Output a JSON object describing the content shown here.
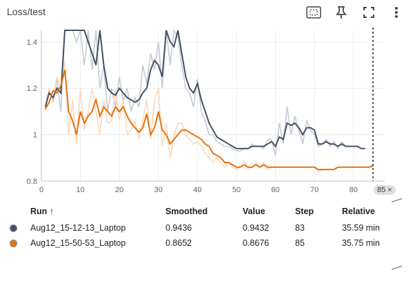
{
  "card": {
    "title": "Loss/test"
  },
  "toolbar": {
    "icons": [
      "fit-domain-icon",
      "pin-icon",
      "fullscreen-icon",
      "more-vert-icon"
    ]
  },
  "chart_data": {
    "type": "line",
    "xlim": [
      0,
      88
    ],
    "ylim": [
      0.8,
      1.45
    ],
    "x_ticks": [
      {
        "v": 0,
        "label": "0"
      },
      {
        "v": 10,
        "label": "10"
      },
      {
        "v": 20,
        "label": "20"
      },
      {
        "v": 30,
        "label": "30"
      },
      {
        "v": 40,
        "label": "40"
      },
      {
        "v": 50,
        "label": "50"
      },
      {
        "v": 60,
        "label": "60"
      },
      {
        "v": 70,
        "label": "70"
      },
      {
        "v": 80,
        "label": "80"
      }
    ],
    "y_ticks": [
      {
        "v": 0.8,
        "label": "0.8"
      },
      {
        "v": 1.0,
        "label": "1"
      },
      {
        "v": 1.2,
        "label": "1.2"
      },
      {
        "v": 1.4,
        "label": "1.4"
      }
    ],
    "grid": true,
    "cursor_step": 85,
    "series": [
      {
        "name": "Aug12_15-12-13_Laptop",
        "color": "#425066",
        "raw_color": "#c5cad3",
        "x": [
          1,
          2,
          3,
          4,
          5,
          6,
          7,
          8,
          9,
          10,
          11,
          12,
          13,
          14,
          15,
          16,
          17,
          18,
          19,
          20,
          21,
          22,
          23,
          24,
          25,
          26,
          27,
          28,
          29,
          30,
          31,
          32,
          33,
          34,
          35,
          36,
          37,
          38,
          39,
          40,
          41,
          42,
          43,
          44,
          45,
          46,
          47,
          48,
          49,
          50,
          51,
          52,
          53,
          54,
          55,
          56,
          57,
          58,
          59,
          60,
          61,
          62,
          63,
          64,
          65,
          66,
          67,
          68,
          69,
          70,
          71,
          72,
          73,
          74,
          75,
          76,
          77,
          78,
          79,
          80,
          81,
          82,
          83
        ],
        "smoothed": [
          1.12,
          1.18,
          1.16,
          1.2,
          1.18,
          1.5,
          1.65,
          1.7,
          1.55,
          1.45,
          1.5,
          1.4,
          1.35,
          1.3,
          1.45,
          1.3,
          1.2,
          1.18,
          1.17,
          1.2,
          1.18,
          1.16,
          1.15,
          1.14,
          1.15,
          1.18,
          1.2,
          1.28,
          1.32,
          1.3,
          1.25,
          1.45,
          1.4,
          1.38,
          1.5,
          1.35,
          1.25,
          1.2,
          1.18,
          1.22,
          1.15,
          1.1,
          1.05,
          1.02,
          0.99,
          0.98,
          0.97,
          0.96,
          0.95,
          0.94,
          0.94,
          0.94,
          0.94,
          0.95,
          0.95,
          0.95,
          0.95,
          0.96,
          0.97,
          0.95,
          0.99,
          0.98,
          1.05,
          1.04,
          1.05,
          1.03,
          1.0,
          1.03,
          1.03,
          1.02,
          0.96,
          0.96,
          0.97,
          0.96,
          0.96,
          0.95,
          0.96,
          0.95,
          0.95,
          0.95,
          0.95,
          0.94,
          0.94
        ],
        "raw": [
          1.12,
          1.2,
          1.14,
          1.24,
          1.1,
          1.7,
          1.72,
          1.6,
          1.4,
          1.5,
          1.3,
          1.45,
          1.28,
          1.5,
          1.2,
          1.3,
          1.1,
          1.2,
          1.12,
          1.25,
          1.14,
          1.2,
          1.1,
          1.16,
          1.12,
          1.3,
          1.22,
          1.35,
          1.28,
          1.4,
          1.2,
          1.5,
          1.3,
          1.45,
          1.42,
          1.3,
          1.2,
          1.18,
          1.12,
          1.24,
          1.1,
          1.06,
          1.0,
          1.0,
          0.97,
          0.96,
          0.95,
          0.95,
          0.94,
          0.93,
          0.93,
          0.94,
          0.94,
          0.96,
          0.95,
          0.95,
          0.94,
          0.98,
          0.98,
          0.91,
          1.05,
          0.96,
          1.12,
          1.0,
          1.08,
          1.02,
          0.96,
          1.06,
          1.02,
          1.0,
          0.95,
          0.96,
          0.98,
          0.95,
          0.97,
          0.94,
          0.97,
          0.95,
          0.95,
          0.95,
          0.95,
          0.94,
          0.94
        ]
      },
      {
        "name": "Aug12_15-50-53_Laptop",
        "color": "#e8710a",
        "raw_color": "#fbd8bb",
        "x": [
          1,
          2,
          3,
          4,
          5,
          6,
          7,
          8,
          9,
          10,
          11,
          12,
          13,
          14,
          15,
          16,
          17,
          18,
          19,
          20,
          21,
          22,
          23,
          24,
          25,
          26,
          27,
          28,
          29,
          30,
          31,
          32,
          33,
          34,
          35,
          36,
          37,
          38,
          39,
          40,
          41,
          42,
          43,
          44,
          45,
          46,
          47,
          48,
          49,
          50,
          51,
          52,
          53,
          54,
          55,
          56,
          57,
          58,
          59,
          60,
          61,
          62,
          63,
          64,
          65,
          66,
          67,
          68,
          69,
          70,
          71,
          72,
          73,
          74,
          75,
          76,
          77,
          78,
          79,
          80,
          81,
          82,
          83,
          84,
          85
        ],
        "smoothed": [
          1.11,
          1.14,
          1.19,
          1.18,
          1.21,
          1.28,
          1.1,
          1.06,
          1.0,
          1.1,
          1.05,
          1.08,
          1.1,
          1.15,
          1.08,
          1.12,
          1.1,
          1.08,
          1.12,
          1.1,
          1.12,
          1.08,
          1.05,
          1.03,
          1.01,
          1.03,
          1.09,
          1.0,
          1.03,
          1.1,
          1.02,
          1.0,
          0.96,
          0.98,
          1.0,
          1.02,
          1.02,
          1.01,
          1.0,
          0.99,
          0.98,
          0.96,
          0.95,
          0.92,
          0.91,
          0.9,
          0.88,
          0.88,
          0.87,
          0.86,
          0.86,
          0.87,
          0.86,
          0.86,
          0.87,
          0.86,
          0.87,
          0.86,
          0.86,
          0.86,
          0.86,
          0.86,
          0.86,
          0.86,
          0.86,
          0.86,
          0.86,
          0.86,
          0.86,
          0.86,
          0.85,
          0.85,
          0.85,
          0.85,
          0.85,
          0.86,
          0.86,
          0.86,
          0.86,
          0.86,
          0.86,
          0.86,
          0.86,
          0.86,
          0.865
        ],
        "raw": [
          1.1,
          1.2,
          1.15,
          1.25,
          1.2,
          1.32,
          1.0,
          1.15,
          0.96,
          1.2,
          1.02,
          1.1,
          1.2,
          1.1,
          1.0,
          1.15,
          1.05,
          1.06,
          1.2,
          1.06,
          1.15,
          1.0,
          1.02,
          1.06,
          0.98,
          1.06,
          1.15,
          0.98,
          1.15,
          1.2,
          0.95,
          1.05,
          0.9,
          1.0,
          1.05,
          1.05,
          1.0,
          0.98,
          0.96,
          0.97,
          0.95,
          0.92,
          0.9,
          0.88,
          0.9,
          0.88,
          0.86,
          0.88,
          0.86,
          0.85,
          0.86,
          0.89,
          0.85,
          0.86,
          0.88,
          0.86,
          0.88,
          0.85,
          0.86,
          0.86,
          0.86,
          0.86,
          0.86,
          0.86,
          0.86,
          0.86,
          0.86,
          0.86,
          0.86,
          0.86,
          0.84,
          0.85,
          0.85,
          0.85,
          0.85,
          0.86,
          0.86,
          0.86,
          0.86,
          0.86,
          0.86,
          0.86,
          0.86,
          0.86,
          0.87
        ]
      }
    ]
  },
  "step_badge": {
    "label": "85",
    "close": "×"
  },
  "tooltip": {
    "headers": {
      "run": "Run ↑",
      "smoothed": "Smoothed",
      "value": "Value",
      "step": "Step",
      "relative": "Relative"
    },
    "rows": [
      {
        "run": "Aug12_15-12-13_Laptop",
        "color": "#425066",
        "smoothed": "0.9436",
        "value": "0.9432",
        "step": "83",
        "relative": "35.59 min"
      },
      {
        "run": "Aug12_15-50-53_Laptop",
        "color": "#e8710a",
        "smoothed": "0.8652",
        "value": "0.8676",
        "step": "85",
        "relative": "35.75 min"
      }
    ]
  }
}
